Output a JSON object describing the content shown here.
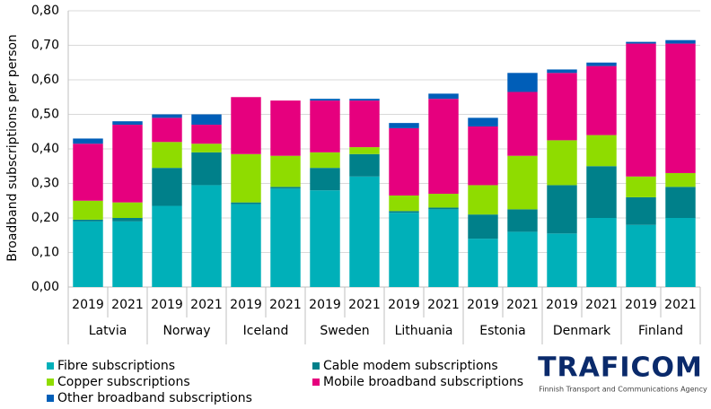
{
  "chart_data": {
    "type": "stacked_bar",
    "y_label": "Broadband subscriptions per person",
    "categories": [
      "2019",
      "2021",
      "2019",
      "2021",
      "2019",
      "2021",
      "2019",
      "2021",
      "2019",
      "2021",
      "2019",
      "2021",
      "2019",
      "2021",
      "2019",
      "2021"
    ],
    "groups": [
      "Latvia",
      "Norway",
      "Iceland",
      "Sweden",
      "Lithuania",
      "Estonia",
      "Denmark",
      "Finland"
    ],
    "series": [
      {
        "name": "Fibre subscriptions",
        "color": "#00b0b9",
        "values": [
          0.19,
          0.19,
          0.235,
          0.295,
          0.24,
          0.285,
          0.28,
          0.32,
          0.215,
          0.225,
          0.14,
          0.16,
          0.155,
          0.2,
          0.18,
          0.2
        ]
      },
      {
        "name": "Cable modem subscriptions",
        "color": "#00808a",
        "values": [
          0.005,
          0.01,
          0.11,
          0.095,
          0.005,
          0.005,
          0.065,
          0.065,
          0.005,
          0.005,
          0.07,
          0.065,
          0.14,
          0.15,
          0.08,
          0.09
        ]
      },
      {
        "name": "Copper subscriptions",
        "color": "#8fdc00",
        "values": [
          0.055,
          0.045,
          0.075,
          0.025,
          0.14,
          0.09,
          0.045,
          0.02,
          0.045,
          0.04,
          0.085,
          0.155,
          0.13,
          0.09,
          0.06,
          0.04
        ]
      },
      {
        "name": "Mobile broadband subscriptions",
        "color": "#e6007e",
        "values": [
          0.165,
          0.225,
          0.07,
          0.055,
          0.165,
          0.16,
          0.15,
          0.135,
          0.195,
          0.275,
          0.17,
          0.185,
          0.195,
          0.2,
          0.385,
          0.375
        ]
      },
      {
        "name": "Other broadband subscriptions",
        "color": "#005eb8",
        "values": [
          0.015,
          0.01,
          0.01,
          0.03,
          0,
          0,
          0.005,
          0.005,
          0.015,
          0.015,
          0.025,
          0.055,
          0.01,
          0.01,
          0.005,
          0.01
        ]
      }
    ],
    "ylim": [
      0,
      0.8
    ],
    "yticks": [
      {
        "value": 0,
        "label": "0,00"
      },
      {
        "value": 0.1,
        "label": "0,10"
      },
      {
        "value": 0.2,
        "label": "0,20"
      },
      {
        "value": 0.3,
        "label": "0,30"
      },
      {
        "value": 0.4,
        "label": "0,40"
      },
      {
        "value": 0.5,
        "label": "0,50"
      },
      {
        "value": 0.6,
        "label": "0,60"
      },
      {
        "value": 0.7,
        "label": "0,70"
      },
      {
        "value": 0.8,
        "label": "0,80"
      }
    ],
    "grid": true
  },
  "logo": {
    "text": "TRAFICOM",
    "subtitle": "Finnish Transport and Communications Agency"
  }
}
